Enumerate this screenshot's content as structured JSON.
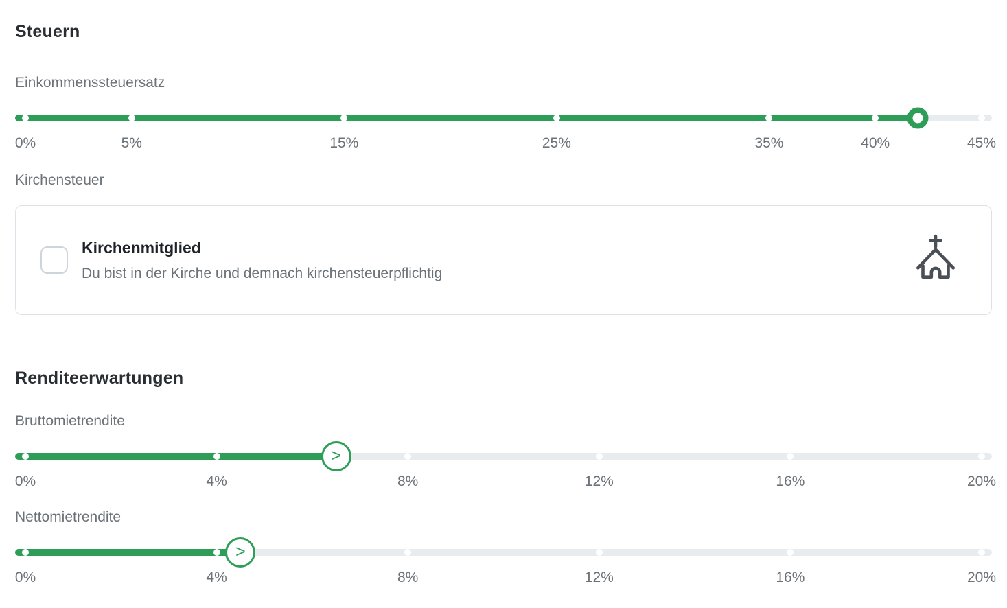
{
  "colors": {
    "accent": "#2e9d58",
    "track": "#e9ecef",
    "text_dark": "#292e33",
    "text_gray": "#6b7278",
    "card_border": "#dee2e6",
    "icon": "#4a5056"
  },
  "steuern": {
    "title": "Steuern",
    "einkommenssteuersatz": {
      "label": "Einkommenssteuersatz",
      "slider": {
        "min": 0,
        "max": 45,
        "value": 42,
        "unit": "%",
        "thumb": "ring",
        "ticks": [
          {
            "value": 0,
            "label": "0%"
          },
          {
            "value": 5,
            "label": "5%"
          },
          {
            "value": 15,
            "label": "15%"
          },
          {
            "value": 25,
            "label": "25%"
          },
          {
            "value": 35,
            "label": "35%"
          },
          {
            "value": 40,
            "label": "40%"
          },
          {
            "value": 45,
            "label": "45%"
          }
        ]
      }
    },
    "kirchensteuer": {
      "label": "Kirchensteuer",
      "card": {
        "title": "Kirchenmitglied",
        "description": "Du bist in der Kirche und demnach kirchensteuerpflichtig",
        "checkbox_checked": false,
        "icon": "church-icon"
      }
    }
  },
  "renditeerwartungen": {
    "title": "Renditeerwartungen",
    "bruttomietrendite": {
      "label": "Bruttomietrendite",
      "slider": {
        "min": 0,
        "max": 20,
        "value": 6.5,
        "unit": "%",
        "thumb": "chevron",
        "thumb_glyph": ">",
        "ticks": [
          {
            "value": 0,
            "label": "0%"
          },
          {
            "value": 4,
            "label": "4%"
          },
          {
            "value": 8,
            "label": "8%"
          },
          {
            "value": 12,
            "label": "12%"
          },
          {
            "value": 16,
            "label": "16%"
          },
          {
            "value": 20,
            "label": "20%"
          }
        ]
      }
    },
    "nettomietrendite": {
      "label": "Nettomietrendite",
      "slider": {
        "min": 0,
        "max": 20,
        "value": 4.5,
        "unit": "%",
        "thumb": "chevron",
        "thumb_glyph": ">",
        "ticks": [
          {
            "value": 0,
            "label": "0%"
          },
          {
            "value": 4,
            "label": "4%"
          },
          {
            "value": 8,
            "label": "8%"
          },
          {
            "value": 12,
            "label": "12%"
          },
          {
            "value": 16,
            "label": "16%"
          },
          {
            "value": 20,
            "label": "20%"
          }
        ]
      }
    }
  }
}
